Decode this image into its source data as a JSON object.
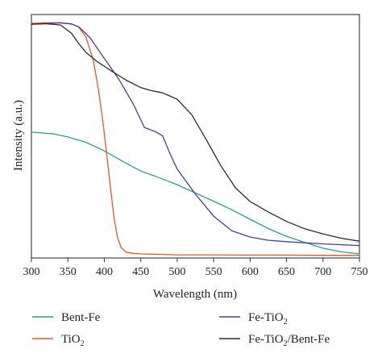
{
  "chart_data": {
    "type": "line",
    "title": "",
    "xlabel": "Wavelength (nm)",
    "ylabel": "Intensity (a.u.)",
    "xlim": [
      300,
      750
    ],
    "ylim": [
      0,
      1
    ],
    "x_ticks": [
      "300",
      "350",
      "400",
      "450",
      "500",
      "550",
      "600",
      "650",
      "700",
      "750"
    ],
    "y_ticks_shown": false,
    "grid": false,
    "legend_position": "below",
    "series": [
      {
        "name": "Bent-Fe",
        "color": "#2f9a92",
        "x": [
          300,
          330,
          350,
          375,
          400,
          425,
          450,
          475,
          500,
          525,
          550,
          575,
          600,
          625,
          650,
          675,
          700,
          725,
          750
        ],
        "y": [
          0.517,
          0.51,
          0.497,
          0.475,
          0.44,
          0.397,
          0.357,
          0.33,
          0.301,
          0.267,
          0.233,
          0.198,
          0.159,
          0.121,
          0.089,
          0.064,
          0.04,
          0.025,
          0.017
        ]
      },
      {
        "name": "TiO2",
        "color": "#e2572b",
        "x": [
          300,
          320,
          340,
          355,
          365,
          375,
          385,
          392,
          398,
          403,
          408,
          413,
          418,
          423,
          430,
          440,
          450,
          475,
          500,
          550,
          600,
          650,
          700,
          750
        ],
        "y": [
          0.964,
          0.966,
          0.966,
          0.962,
          0.948,
          0.906,
          0.811,
          0.691,
          0.562,
          0.433,
          0.301,
          0.172,
          0.086,
          0.043,
          0.024,
          0.019,
          0.017,
          0.015,
          0.013,
          0.013,
          0.012,
          0.012,
          0.011,
          0.011
        ]
      },
      {
        "name": "Fe-TiO2",
        "color": "#4a3aa0",
        "x": [
          300,
          320,
          340,
          355,
          365,
          380,
          400,
          420,
          440,
          455,
          470,
          480,
          490,
          500,
          525,
          550,
          575,
          600,
          625,
          650,
          700,
          750
        ],
        "y": [
          0.96,
          0.963,
          0.966,
          0.961,
          0.949,
          0.906,
          0.82,
          0.734,
          0.631,
          0.536,
          0.519,
          0.502,
          0.429,
          0.365,
          0.262,
          0.172,
          0.112,
          0.086,
          0.073,
          0.067,
          0.058,
          0.051
        ]
      },
      {
        "name": "Fe-TiO2/Bent-Fe",
        "color": "#2b2b2b",
        "x": [
          300,
          320,
          340,
          355,
          365,
          375,
          390,
          410,
          430,
          450,
          465,
          480,
          500,
          520,
          540,
          560,
          580,
          600,
          625,
          650,
          675,
          700,
          725,
          750
        ],
        "y": [
          0.96,
          0.962,
          0.957,
          0.923,
          0.88,
          0.844,
          0.807,
          0.768,
          0.73,
          0.7,
          0.687,
          0.678,
          0.652,
          0.588,
          0.485,
          0.378,
          0.288,
          0.232,
          0.189,
          0.15,
          0.12,
          0.099,
          0.081,
          0.069
        ]
      }
    ],
    "legend": [
      {
        "label": "Bent-Fe",
        "series": 0
      },
      {
        "label": "Fe-TiO2",
        "series": 2,
        "base": "Fe-TiO",
        "sub": "2",
        "rest": ""
      },
      {
        "label": "TiO2",
        "series": 1,
        "base": "TiO",
        "sub": "2",
        "rest": ""
      },
      {
        "label": "Fe-TiO2/Bent-Fe",
        "series": 3,
        "base": "Fe-TiO",
        "sub": "2",
        "rest": "/Bent-Fe"
      }
    ]
  }
}
